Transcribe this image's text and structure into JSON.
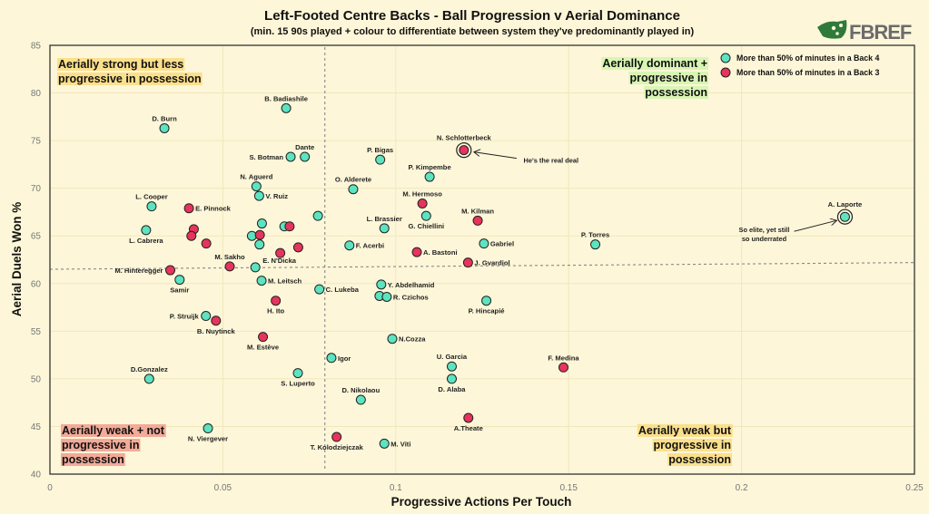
{
  "logo_text": "FBREF",
  "colors": {
    "background": "#fdf6d8",
    "back4": "#5de3c0",
    "back3": "#e6345c",
    "grid": "#f1e7bd"
  },
  "chart_data": {
    "type": "scatter",
    "title": "Left-Footed Centre Backs - Ball Progression v Aerial Dominance",
    "subtitle": "(min. 15 90s played + colour to differentiate between system they've predominantly played in)",
    "xlabel": "Progressive Actions Per Touch",
    "ylabel": "Aerial Duels Won %",
    "xlim": [
      0,
      0.25
    ],
    "ylim": [
      40,
      85
    ],
    "xticks": [
      "0",
      "0.05",
      "0.1",
      "0.15",
      "0.2",
      "0.25"
    ],
    "yticks": [
      "40",
      "45",
      "50",
      "55",
      "60",
      "65",
      "70",
      "75",
      "80",
      "85"
    ],
    "grid": true,
    "legend_position": "top-right",
    "legend": [
      {
        "group": "back4",
        "label": "More than 50% of minutes in a Back 4"
      },
      {
        "group": "back3",
        "label": "More than 50% of minutes in a Back 3"
      }
    ],
    "reference_lines": {
      "vertical_x": 0.0795,
      "horizontal_y_start": 61.5,
      "horizontal_y_end": 62.2
    },
    "quadrants": {
      "top_left": [
        "Aerially strong but less",
        "progressive in possession"
      ],
      "top_right": [
        "Aerially dominant +",
        "progressive in",
        "possession"
      ],
      "bottom_left": [
        "Aerially weak + not",
        "progressive in",
        "possession"
      ],
      "bottom_right": [
        "Aerially weak but",
        "progressive in",
        "possession"
      ]
    },
    "annotations": [
      {
        "player": "N. Schlotterbeck",
        "lines": [
          "He's the real deal"
        ]
      },
      {
        "player": "A. Laporte",
        "lines": [
          "So elite, yet still",
          "so underrated"
        ]
      }
    ],
    "points": [
      {
        "name": "B. Badiashile",
        "x": 0.0683,
        "y": 78.4,
        "group": "back4",
        "pos": "top"
      },
      {
        "name": "D. Burn",
        "x": 0.0331,
        "y": 76.3,
        "group": "back4",
        "pos": "top"
      },
      {
        "name": "Dante",
        "x": 0.0737,
        "y": 73.3,
        "group": "back4",
        "pos": "top"
      },
      {
        "name": "S. Botman",
        "x": 0.0696,
        "y": 73.3,
        "group": "back4",
        "pos": "left"
      },
      {
        "name": "N. Aguerd",
        "x": 0.0597,
        "y": 70.2,
        "group": "back4",
        "pos": "top"
      },
      {
        "name": "V. Ruiz",
        "x": 0.0605,
        "y": 69.2,
        "group": "back4",
        "pos": "right"
      },
      {
        "name": "L. Cooper",
        "x": 0.0294,
        "y": 68.1,
        "group": "back4",
        "pos": "top"
      },
      {
        "name": "E. Pinnock",
        "x": 0.0402,
        "y": 67.9,
        "group": "back3",
        "pos": "right"
      },
      {
        "name": "L. Cabrera",
        "x": 0.0278,
        "y": 65.6,
        "group": "back4",
        "pos": "below"
      },
      {
        "name": "",
        "x": 0.0416,
        "y": 65.7,
        "group": "back3",
        "pos": "none"
      },
      {
        "name": "",
        "x": 0.0409,
        "y": 65.0,
        "group": "back3",
        "pos": "none"
      },
      {
        "name": "",
        "x": 0.0452,
        "y": 64.2,
        "group": "back3",
        "pos": "none"
      },
      {
        "name": "",
        "x": 0.0613,
        "y": 66.3,
        "group": "back4",
        "pos": "none"
      },
      {
        "name": "",
        "x": 0.0584,
        "y": 65.0,
        "group": "back4",
        "pos": "none"
      },
      {
        "name": "",
        "x": 0.0607,
        "y": 65.1,
        "group": "back3",
        "pos": "none"
      },
      {
        "name": "",
        "x": 0.0606,
        "y": 64.1,
        "group": "back4",
        "pos": "none"
      },
      {
        "name": "",
        "x": 0.0678,
        "y": 66.0,
        "group": "back4",
        "pos": "none"
      },
      {
        "name": "",
        "x": 0.0693,
        "y": 66.0,
        "group": "back3",
        "pos": "none"
      },
      {
        "name": "",
        "x": 0.0775,
        "y": 67.1,
        "group": "back4",
        "pos": "none"
      },
      {
        "name": "",
        "x": 0.0666,
        "y": 63.2,
        "group": "back3",
        "pos": "none"
      },
      {
        "name": "",
        "x": 0.0718,
        "y": 63.8,
        "group": "back3",
        "pos": "none"
      },
      {
        "name": "O. Alderete",
        "x": 0.0877,
        "y": 69.9,
        "group": "back4",
        "pos": "top"
      },
      {
        "name": "P. Bigas",
        "x": 0.0955,
        "y": 73.0,
        "group": "back4",
        "pos": "top"
      },
      {
        "name": "P. Kimpembe",
        "x": 0.1098,
        "y": 71.2,
        "group": "back4",
        "pos": "top"
      },
      {
        "name": "M. Hermoso",
        "x": 0.1077,
        "y": 68.4,
        "group": "back3",
        "pos": "top"
      },
      {
        "name": "G. Chiellini",
        "x": 0.1088,
        "y": 67.1,
        "group": "back4",
        "pos": "below"
      },
      {
        "name": "L. Brassier",
        "x": 0.0967,
        "y": 65.8,
        "group": "back4",
        "pos": "top"
      },
      {
        "name": "F. Acerbi",
        "x": 0.0866,
        "y": 64.0,
        "group": "back4",
        "pos": "right"
      },
      {
        "name": "A. Bastoni",
        "x": 0.1061,
        "y": 63.3,
        "group": "back3",
        "pos": "right"
      },
      {
        "name": "N. Schlotterbeck",
        "x": 0.1197,
        "y": 74.0,
        "group": "back3",
        "pos": "top",
        "highlight": true
      },
      {
        "name": "M. Kilman",
        "x": 0.1237,
        "y": 66.6,
        "group": "back3",
        "pos": "top"
      },
      {
        "name": "Gabriel",
        "x": 0.1255,
        "y": 64.2,
        "group": "back4",
        "pos": "right"
      },
      {
        "name": "P. Torres",
        "x": 0.1577,
        "y": 64.1,
        "group": "back4",
        "pos": "top"
      },
      {
        "name": "A. Laporte",
        "x": 0.2299,
        "y": 67.0,
        "group": "back4",
        "pos": "top",
        "highlight": true
      },
      {
        "name": "J. Gvardiol",
        "x": 0.1209,
        "y": 62.2,
        "group": "back3",
        "pos": "right"
      },
      {
        "name": "M. Sakho",
        "x": 0.052,
        "y": 61.8,
        "group": "back3",
        "pos": "top"
      },
      {
        "name": "E. N'Dicka",
        "x": 0.0594,
        "y": 61.7,
        "group": "back4",
        "pos": "topright"
      },
      {
        "name": "M. Hinteregger",
        "x": 0.0348,
        "y": 61.4,
        "group": "back3",
        "pos": "left"
      },
      {
        "name": "Samir",
        "x": 0.0375,
        "y": 60.4,
        "group": "back4",
        "pos": "below"
      },
      {
        "name": "M. Leitsch",
        "x": 0.0612,
        "y": 60.3,
        "group": "back4",
        "pos": "right"
      },
      {
        "name": "C. Lukeba",
        "x": 0.0779,
        "y": 59.4,
        "group": "back4",
        "pos": "right"
      },
      {
        "name": "H. Ito",
        "x": 0.0653,
        "y": 58.2,
        "group": "back3",
        "pos": "below"
      },
      {
        "name": "Y. Abdelhamid",
        "x": 0.0958,
        "y": 59.9,
        "group": "back4",
        "pos": "right"
      },
      {
        "name": "",
        "x": 0.0953,
        "y": 58.7,
        "group": "back4",
        "pos": "none"
      },
      {
        "name": "R. Czichos",
        "x": 0.0974,
        "y": 58.6,
        "group": "back4",
        "pos": "right"
      },
      {
        "name": "P. Struijk",
        "x": 0.0451,
        "y": 56.6,
        "group": "back4",
        "pos": "left"
      },
      {
        "name": "B. Nuytinck",
        "x": 0.048,
        "y": 56.1,
        "group": "back3",
        "pos": "below"
      },
      {
        "name": "M. Estève",
        "x": 0.0616,
        "y": 54.4,
        "group": "back3",
        "pos": "below"
      },
      {
        "name": "N.Cozza",
        "x": 0.099,
        "y": 54.2,
        "group": "back4",
        "pos": "right"
      },
      {
        "name": "Igor",
        "x": 0.0814,
        "y": 52.2,
        "group": "back4",
        "pos": "right"
      },
      {
        "name": "U. Garcia",
        "x": 0.1162,
        "y": 51.3,
        "group": "back4",
        "pos": "top"
      },
      {
        "name": "D. Alaba",
        "x": 0.1162,
        "y": 50.0,
        "group": "back4",
        "pos": "below"
      },
      {
        "name": "S. Luperto",
        "x": 0.0717,
        "y": 50.6,
        "group": "back4",
        "pos": "below"
      },
      {
        "name": "D.Gonzalez",
        "x": 0.0287,
        "y": 50.0,
        "group": "back4",
        "pos": "top"
      },
      {
        "name": "D. Nikolaou",
        "x": 0.0899,
        "y": 47.8,
        "group": "back4",
        "pos": "top"
      },
      {
        "name": "A.Theate",
        "x": 0.121,
        "y": 45.9,
        "group": "back3",
        "pos": "below"
      },
      {
        "name": "N. Viergever",
        "x": 0.0457,
        "y": 44.8,
        "group": "back4",
        "pos": "below"
      },
      {
        "name": "T. Kolodziejczak",
        "x": 0.0829,
        "y": 43.9,
        "group": "back3",
        "pos": "below"
      },
      {
        "name": "M. Viti",
        "x": 0.0967,
        "y": 43.2,
        "group": "back4",
        "pos": "right"
      },
      {
        "name": "P. Hincapié",
        "x": 0.1262,
        "y": 58.2,
        "group": "back4",
        "pos": "below"
      },
      {
        "name": "F. Medina",
        "x": 0.1485,
        "y": 51.2,
        "group": "back3",
        "pos": "top"
      }
    ]
  }
}
